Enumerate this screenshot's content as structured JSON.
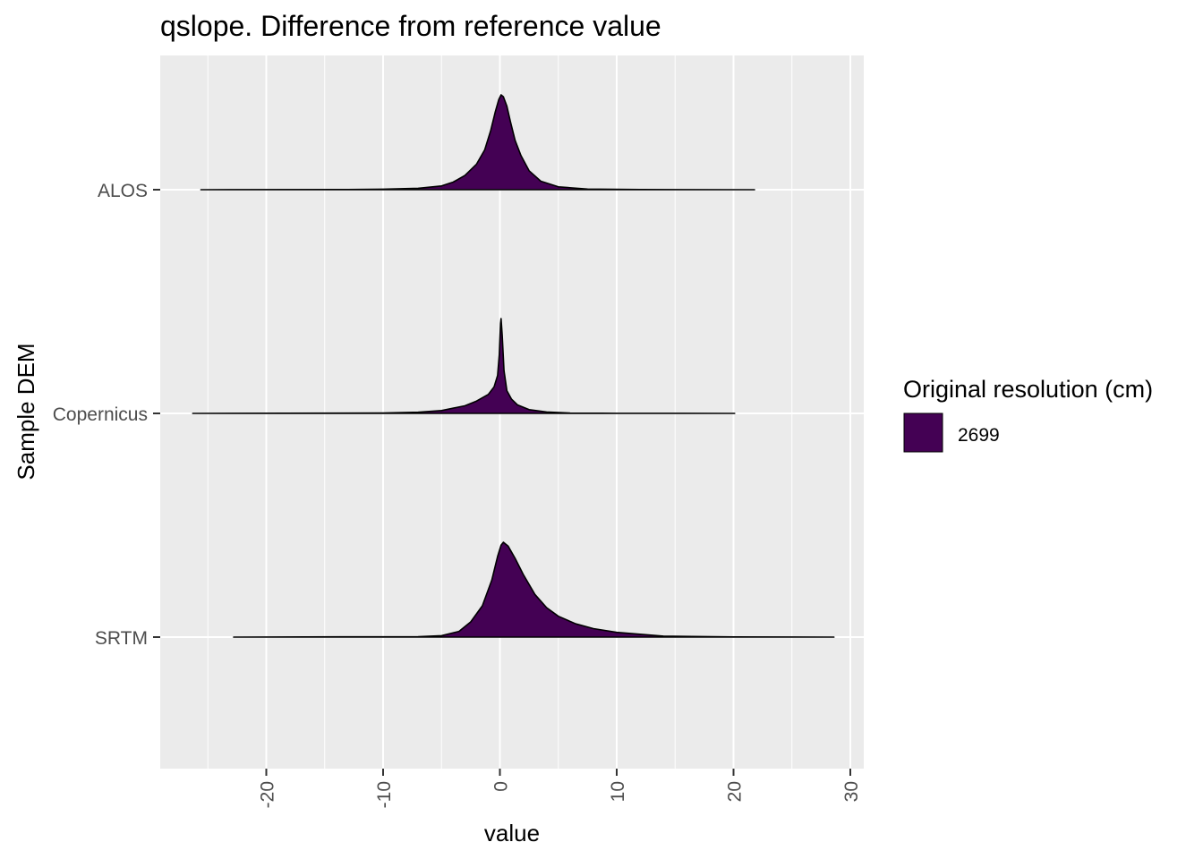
{
  "chart_data": {
    "type": "area",
    "subtype": "ridgeline-density",
    "title": "qslope. Difference from reference value",
    "xlabel": "value",
    "ylabel": "Sample DEM",
    "xlim": [
      -29.4,
      30.8
    ],
    "x_ticks": [
      -20,
      -10,
      0,
      10,
      20,
      30
    ],
    "x_tick_labels": [
      "-20",
      "-10",
      "0",
      "10",
      "20",
      "30"
    ],
    "categories": [
      "SRTM",
      "Copernicus",
      "ALOS"
    ],
    "grid": true,
    "panel_background": "#ebebeb",
    "fill_color": "#440154",
    "legend": {
      "title": "Original resolution (cm)",
      "placement": "right",
      "entries": [
        {
          "label": "2699",
          "color": "#440154"
        }
      ]
    },
    "series": [
      {
        "category": "ALOS",
        "range": [
          -25.6,
          21.8
        ],
        "points": [
          [
            -25.6,
            0
          ],
          [
            -13,
            0.002
          ],
          [
            -10,
            0.006
          ],
          [
            -7,
            0.015
          ],
          [
            -5,
            0.04
          ],
          [
            -4,
            0.08
          ],
          [
            -3,
            0.15
          ],
          [
            -2,
            0.27
          ],
          [
            -1.3,
            0.42
          ],
          [
            -0.8,
            0.62
          ],
          [
            -0.4,
            0.82
          ],
          [
            -0.1,
            0.95
          ],
          [
            0.1,
            1.0
          ],
          [
            0.3,
            0.98
          ],
          [
            0.6,
            0.88
          ],
          [
            0.9,
            0.72
          ],
          [
            1.3,
            0.52
          ],
          [
            1.8,
            0.36
          ],
          [
            2.5,
            0.2
          ],
          [
            3.5,
            0.09
          ],
          [
            5,
            0.03
          ],
          [
            7.5,
            0.007
          ],
          [
            12,
            0.002
          ],
          [
            21.8,
            0
          ]
        ]
      },
      {
        "category": "Copernicus",
        "range": [
          -26.3,
          20.1
        ],
        "points": [
          [
            -26.3,
            0
          ],
          [
            -10,
            0.004
          ],
          [
            -7,
            0.012
          ],
          [
            -5,
            0.03
          ],
          [
            -3,
            0.08
          ],
          [
            -2,
            0.13
          ],
          [
            -1,
            0.2
          ],
          [
            -0.5,
            0.28
          ],
          [
            -0.2,
            0.4
          ],
          [
            -0.05,
            0.62
          ],
          [
            0.05,
            0.95
          ],
          [
            0.1,
            1.0
          ],
          [
            0.2,
            0.82
          ],
          [
            0.35,
            0.45
          ],
          [
            0.6,
            0.24
          ],
          [
            1,
            0.15
          ],
          [
            1.5,
            0.09
          ],
          [
            2.5,
            0.04
          ],
          [
            4,
            0.015
          ],
          [
            6,
            0.004
          ],
          [
            10,
            0.001
          ],
          [
            20.1,
            0
          ]
        ]
      },
      {
        "category": "SRTM",
        "range": [
          -22.8,
          28.6
        ],
        "points": [
          [
            -22.8,
            0
          ],
          [
            -7,
            0.005
          ],
          [
            -5,
            0.015
          ],
          [
            -3.5,
            0.06
          ],
          [
            -2.5,
            0.16
          ],
          [
            -1.5,
            0.33
          ],
          [
            -0.7,
            0.6
          ],
          [
            -0.2,
            0.85
          ],
          [
            0.1,
            0.97
          ],
          [
            0.3,
            1.0
          ],
          [
            0.7,
            0.96
          ],
          [
            1.3,
            0.83
          ],
          [
            2,
            0.66
          ],
          [
            3,
            0.45
          ],
          [
            4,
            0.31
          ],
          [
            5,
            0.22
          ],
          [
            6.5,
            0.14
          ],
          [
            8,
            0.09
          ],
          [
            10,
            0.05
          ],
          [
            14,
            0.01
          ],
          [
            20,
            0.002
          ],
          [
            28.6,
            0
          ]
        ]
      }
    ]
  }
}
